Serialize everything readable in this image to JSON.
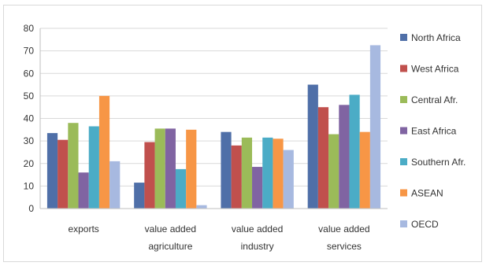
{
  "chart_data": {
    "type": "bar",
    "categories": [
      [
        "exports"
      ],
      [
        "value added",
        "agriculture"
      ],
      [
        "value added",
        "industry"
      ],
      [
        "value added",
        "services"
      ]
    ],
    "series": [
      {
        "name": "North Africa",
        "color": "#4f6fa8",
        "values": [
          33.5,
          11.5,
          34,
          55
        ]
      },
      {
        "name": "West Africa",
        "color": "#c0504d",
        "values": [
          30.5,
          29.5,
          28,
          45
        ]
      },
      {
        "name": "Central Afr.",
        "color": "#9bbb59",
        "values": [
          38,
          35.5,
          31.5,
          33
        ]
      },
      {
        "name": "East Africa",
        "color": "#8064a2",
        "values": [
          16,
          35.5,
          18.5,
          46
        ]
      },
      {
        "name": "Southern Afr.",
        "color": "#4bacc6",
        "values": [
          36.5,
          17.5,
          31.5,
          50.5
        ]
      },
      {
        "name": "ASEAN",
        "color": "#f79646",
        "values": [
          50,
          35,
          31,
          34
        ]
      },
      {
        "name": "OECD",
        "color": "#a7b9e0",
        "values": [
          21,
          1.5,
          26,
          72.5
        ]
      }
    ],
    "yticks": [
      0,
      10,
      20,
      30,
      40,
      50,
      60,
      70,
      80
    ],
    "ylim": [
      0,
      80
    ],
    "grid": true,
    "legend_position": "right",
    "title": "",
    "xlabel": "",
    "ylabel": ""
  }
}
